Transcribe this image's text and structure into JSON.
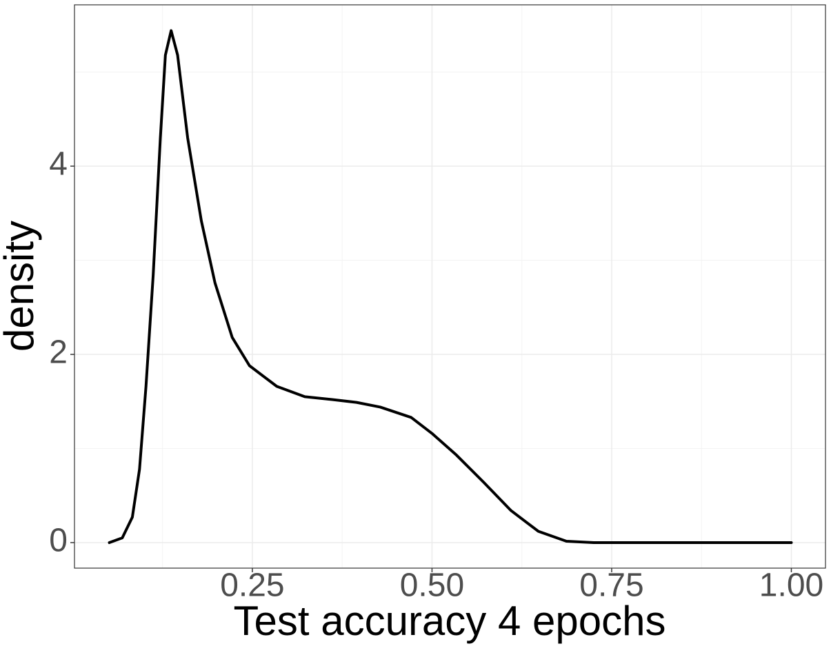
{
  "chart_data": {
    "type": "density",
    "x_label": "Test accuracy 4 epochs",
    "y_label": "density",
    "x": [
      0.051,
      0.069,
      0.083,
      0.093,
      0.102,
      0.112,
      0.122,
      0.129,
      0.137,
      0.146,
      0.16,
      0.179,
      0.198,
      0.222,
      0.246,
      0.284,
      0.323,
      0.361,
      0.395,
      0.428,
      0.471,
      0.5,
      0.534,
      0.572,
      0.61,
      0.648,
      0.687,
      0.725,
      1.0
    ],
    "values": [
      0.0,
      0.05,
      0.27,
      0.78,
      1.66,
      2.84,
      4.3,
      5.18,
      5.44,
      5.18,
      4.3,
      3.42,
      2.76,
      2.18,
      1.88,
      1.66,
      1.55,
      1.52,
      1.49,
      1.44,
      1.33,
      1.16,
      0.93,
      0.64,
      0.34,
      0.12,
      0.015,
      0.0,
      0.0
    ],
    "color": "#000000",
    "xlim": [
      0.0025,
      1.0475
    ],
    "ylim": [
      -0.271,
      5.714
    ],
    "xticks": [
      {
        "value": 0.25,
        "label": "0.25"
      },
      {
        "value": 0.5,
        "label": "0.50"
      },
      {
        "value": 0.75,
        "label": "0.75"
      },
      {
        "value": 1.0,
        "label": "1.00"
      }
    ],
    "yticks": [
      0,
      2,
      4
    ],
    "x_minor_grid": [
      0.125,
      0.375,
      0.625,
      0.875
    ],
    "y_minor_grid": [
      1,
      3,
      5
    ],
    "grid": true
  }
}
